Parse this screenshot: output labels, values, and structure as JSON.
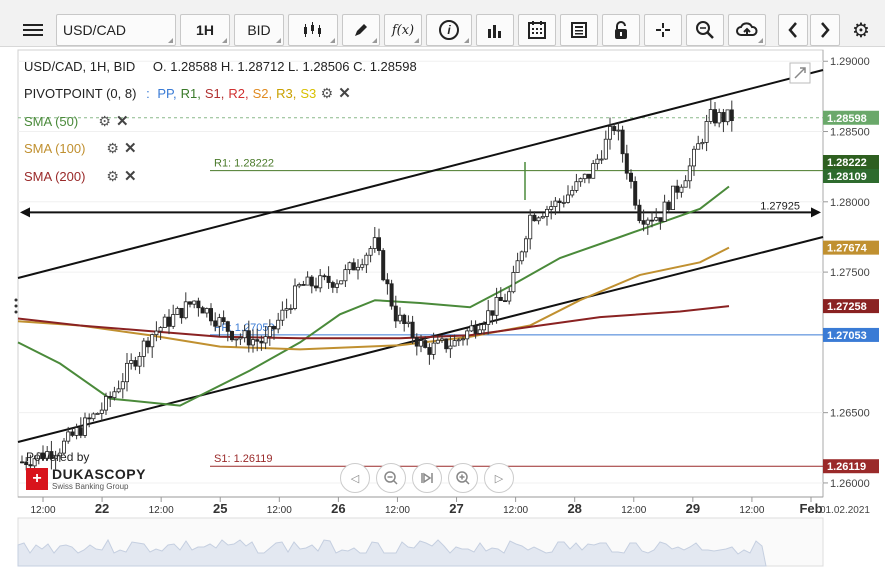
{
  "toolbar": {
    "symbol": "USD/CAD",
    "timeframe": "1H",
    "side": "BID",
    "fx_label": "f(x)",
    "info_label": "i"
  },
  "header": {
    "title": "USD/CAD, 1H, BID",
    "ohlc": "O. 1.28588 H. 1.28712 L. 1.28506 C. 1.28598",
    "pivot_label": "PIVOTPOINT (0, 8)",
    "pivot_sep": ":",
    "pivot_lines": [
      {
        "label": "PP,",
        "color": "#3a7bd5"
      },
      {
        "label": "R1,",
        "color": "#3a7a2a"
      },
      {
        "label": "S1,",
        "color": "#b03030"
      },
      {
        "label": "R2,",
        "color": "#d03030"
      },
      {
        "label": "S2,",
        "color": "#e08a20"
      },
      {
        "label": "R3,",
        "color": "#c9a000"
      },
      {
        "label": "S3",
        "color": "#d8c000"
      }
    ]
  },
  "indicators": [
    {
      "label": "SMA (50)",
      "color": "#4a8a3a"
    },
    {
      "label": "SMA (100)",
      "color": "#c09030"
    },
    {
      "label": "SMA (200)",
      "color": "#9a2a2a"
    }
  ],
  "chart_data": {
    "type": "candlestick",
    "ylim": [
      1.259,
      1.2908
    ],
    "y_ticks": [
      "1.29000",
      "1.28500",
      "1.28000",
      "1.27500",
      "1.26500",
      "1.26000"
    ],
    "x_ticks": [
      "12:00",
      "22",
      "12:00",
      "25",
      "12:00",
      "26",
      "12:00",
      "27",
      "12:00",
      "28",
      "12:00",
      "29",
      "12:00",
      "Feb"
    ],
    "x_corner_label": "01.02.2021",
    "levels": [
      {
        "label": "R1: 1.28222",
        "value": 1.28222,
        "color": "#4a7a2a",
        "tag": "1.28222"
      },
      {
        "label": "PP: 1.27053",
        "value": 1.27053,
        "color": "#3a7bd5",
        "tag": "1.27053"
      },
      {
        "label": "S1: 1.26119",
        "value": 1.26119,
        "color": "#9a2a2a",
        "tag": "1.26119"
      }
    ],
    "horizontal_line": {
      "label": "1.27925",
      "value": 1.27925
    },
    "price_tags": [
      {
        "value": "1.28598",
        "color": "#6aa86a"
      },
      {
        "value": "1.28109",
        "color": "#2e6b2e"
      },
      {
        "value": "1.27674",
        "color": "#c09030"
      },
      {
        "value": "1.27258",
        "color": "#8a2222"
      }
    ],
    "last_price": 1.28598,
    "sma50_end": 1.28109,
    "sma100_end": 1.27674,
    "sma200_end": 1.27258
  },
  "branding": {
    "powered_by": "Powered by",
    "name": "DUKASCOPY",
    "tagline": "Swiss Banking Group"
  }
}
